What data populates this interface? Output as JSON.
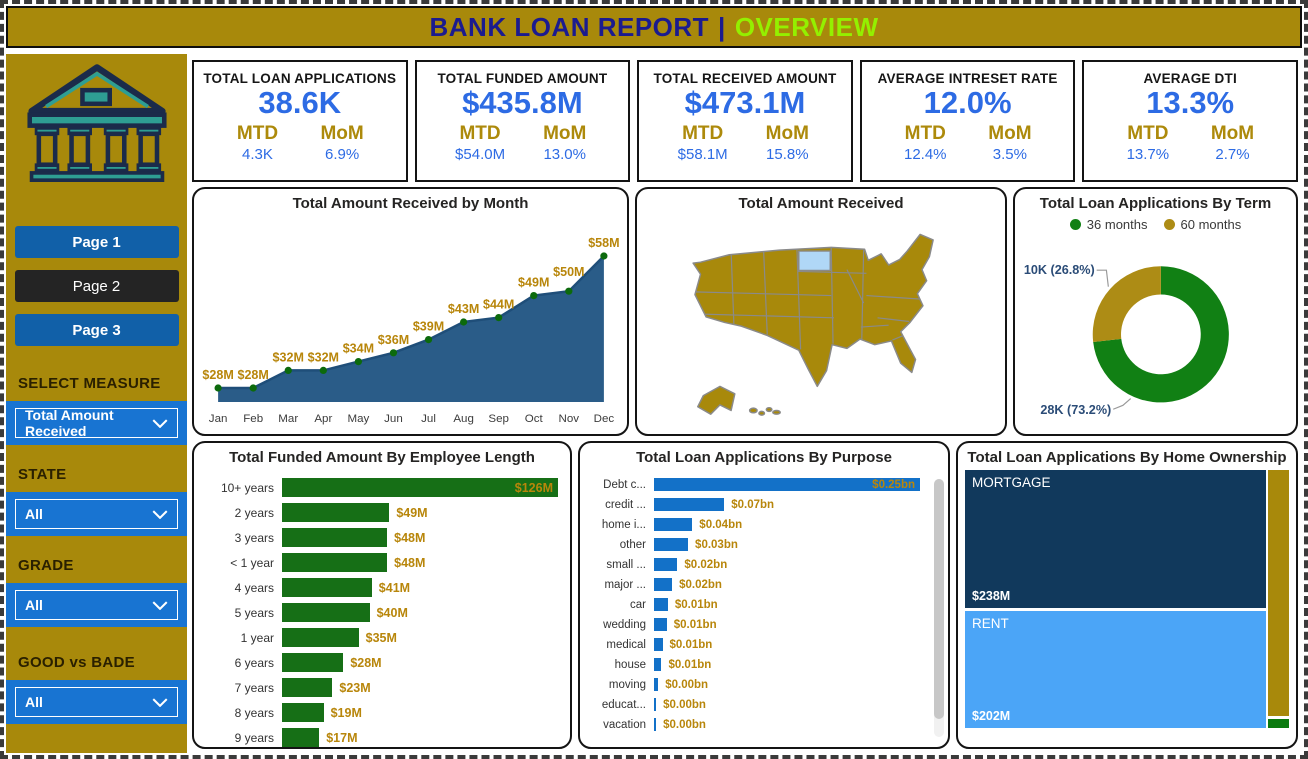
{
  "header": {
    "title": "BANK LOAN REPORT",
    "separator": "|",
    "accent": "OVERVIEW"
  },
  "sidebar": {
    "pages": [
      {
        "label": "Page 1",
        "style": "blue"
      },
      {
        "label": "Page 2",
        "style": "dark"
      },
      {
        "label": "Page 3",
        "style": "blue"
      }
    ],
    "filters": [
      {
        "label": "SELECT MEASURE",
        "value": "Total Amount Received"
      },
      {
        "label": "STATE",
        "value": "All"
      },
      {
        "label": "GRADE",
        "value": "All"
      },
      {
        "label": "GOOD vs BADE",
        "value": "All"
      }
    ]
  },
  "kpis": [
    {
      "title": "TOTAL LOAN APPLICATIONS",
      "value": "38.6K",
      "mtd_label": "MTD",
      "mom_label": "MoM",
      "mtd_value": "4.3K",
      "mom_value": "6.9%"
    },
    {
      "title": "TOTAL FUNDED AMOUNT",
      "value": "$435.8M",
      "mtd_label": "MTD",
      "mom_label": "MoM",
      "mtd_value": "$54.0M",
      "mom_value": "13.0%"
    },
    {
      "title": "TOTAL RECEIVED AMOUNT",
      "value": "$473.1M",
      "mtd_label": "MTD",
      "mom_label": "MoM",
      "mtd_value": "$58.1M",
      "mom_value": "15.8%"
    },
    {
      "title": "AVERAGE INTRESET RATE",
      "value": "12.0%",
      "mtd_label": "MTD",
      "mom_label": "MoM",
      "mtd_value": "12.4%",
      "mom_value": "3.5%"
    },
    {
      "title": "AVERAGE DTI",
      "value": "13.3%",
      "mtd_label": "MTD",
      "mom_label": "MoM",
      "mtd_value": "13.7%",
      "mom_value": "2.7%"
    }
  ],
  "chart_data": [
    {
      "type": "area",
      "title": "Total Amount Received by Month",
      "x": [
        "Jan",
        "Feb",
        "Mar",
        "Apr",
        "May",
        "Jun",
        "Jul",
        "Aug",
        "Sep",
        "Oct",
        "Nov",
        "Dec"
      ],
      "values_m": [
        28,
        28,
        32,
        32,
        34,
        36,
        39,
        43,
        44,
        49,
        50,
        58
      ],
      "labels": [
        "$28M",
        "$28M",
        "$32M",
        "$32M",
        "$34M",
        "$36M",
        "$39M",
        "$43M",
        "$44M",
        "$49M",
        "$50M",
        "$58M"
      ],
      "unit": "USD millions",
      "grid": false
    },
    {
      "type": "map",
      "title": "Total Amount Received",
      "region": "United States",
      "highlighted_state": "North Dakota"
    },
    {
      "type": "donut",
      "title": "Total Loan Applications By Term",
      "legend": [
        "36 months",
        "60 months"
      ],
      "legend_position": "top",
      "slices": [
        {
          "name": "36 months",
          "label": "28K (73.2%)",
          "percent": 73.2,
          "color": "#118014"
        },
        {
          "name": "60 months",
          "label": "10K (26.8%)",
          "percent": 26.8,
          "color": "#AD8C15"
        }
      ]
    },
    {
      "type": "bar",
      "title": "Total Funded Amount By Employee Length",
      "categories": [
        "10+ years",
        "2 years",
        "3 years",
        "< 1 year",
        "4 years",
        "5 years",
        "1 year",
        "6 years",
        "7 years",
        "8 years",
        "9 years"
      ],
      "values_m": [
        126,
        49,
        48,
        48,
        41,
        40,
        35,
        28,
        23,
        19,
        17
      ],
      "labels": [
        "$126M",
        "$49M",
        "$48M",
        "$48M",
        "$41M",
        "$40M",
        "$35M",
        "$28M",
        "$23M",
        "$19M",
        "$17M"
      ]
    },
    {
      "type": "bar",
      "title": "Total Loan Applications By Purpose",
      "categories": [
        "Debt c...",
        "credit ...",
        "home i...",
        "other",
        "small ...",
        "major ...",
        "car",
        "wedding",
        "medical",
        "house",
        "moving",
        "educat...",
        "vacation"
      ],
      "values_bn": [
        0.25,
        0.066,
        0.036,
        0.032,
        0.022,
        0.017,
        0.013,
        0.012,
        0.008,
        0.007,
        0.004,
        0.002,
        0.002
      ],
      "labels": [
        "$0.25bn",
        "$0.07bn",
        "$0.04bn",
        "$0.03bn",
        "$0.02bn",
        "$0.02bn",
        "$0.01bn",
        "$0.01bn",
        "$0.01bn",
        "$0.01bn",
        "$0.00bn",
        "$0.00bn",
        "$0.00bn"
      ],
      "scrollbar": true
    },
    {
      "type": "treemap",
      "title": "Total Loan Applications By Home Ownership",
      "items": [
        {
          "name": "MORTGAGE",
          "label": "$238M",
          "value_m": 238,
          "color": "#11395C"
        },
        {
          "name": "RENT",
          "label": "$202M",
          "value_m": 202,
          "color": "#4BA5F7"
        }
      ],
      "unlabeled_segments": [
        {
          "color": "#A8890B"
        },
        {
          "color": "#0B7A0F"
        }
      ]
    }
  ],
  "colors": {
    "gold": "#A8890B",
    "title_navy": "#1B1B8F",
    "accent_green": "#94F000",
    "kpi_blue": "#2D6BE4",
    "gold_label": "#AD8A0B",
    "button_blue": "#1160A8",
    "button_dark": "#242424",
    "dropdown_blue": "#1874D2",
    "area_fill": "#2A5C88",
    "area_stroke": "#1F4E79",
    "dot_green": "#0C6A0C",
    "value_gold": "#B8860B",
    "bar_green": "#166F16",
    "bar_blue": "#1371C8",
    "callout_blue": "#2B4C77",
    "map_border": "#8A8A8A",
    "map_highlight": "#B0D7F7",
    "card_border": "#141414"
  }
}
